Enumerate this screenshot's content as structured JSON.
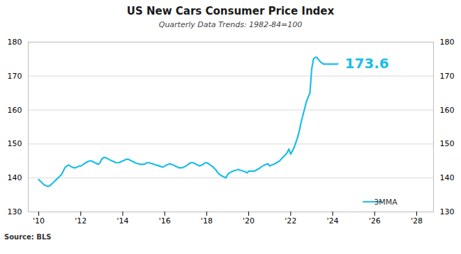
{
  "chart_data": {
    "type": "line",
    "title": "US New Cars Consumer Price Index",
    "subtitle": "Quarterly Data Trends: 1982-84=100",
    "source": "Source: BLS",
    "x": [
      2010.0,
      2010.083,
      2010.167,
      2010.25,
      2010.333,
      2010.417,
      2010.5,
      2010.583,
      2010.667,
      2010.75,
      2010.833,
      2010.917,
      2011.0,
      2011.083,
      2011.167,
      2011.25,
      2011.333,
      2011.417,
      2011.5,
      2011.583,
      2011.667,
      2011.75,
      2011.833,
      2011.917,
      2012.0,
      2012.083,
      2012.167,
      2012.25,
      2012.333,
      2012.417,
      2012.5,
      2012.583,
      2012.667,
      2012.75,
      2012.833,
      2012.917,
      2013.0,
      2013.083,
      2013.167,
      2013.25,
      2013.333,
      2013.417,
      2013.5,
      2013.583,
      2013.667,
      2013.75,
      2013.833,
      2013.917,
      2014.0,
      2014.083,
      2014.167,
      2014.25,
      2014.333,
      2014.417,
      2014.5,
      2014.583,
      2014.667,
      2014.75,
      2014.833,
      2014.917,
      2015.0,
      2015.083,
      2015.167,
      2015.25,
      2015.333,
      2015.417,
      2015.5,
      2015.583,
      2015.667,
      2015.75,
      2015.833,
      2015.917,
      2016.0,
      2016.083,
      2016.167,
      2016.25,
      2016.333,
      2016.417,
      2016.5,
      2016.583,
      2016.667,
      2016.75,
      2016.833,
      2016.917,
      2017.0,
      2017.083,
      2017.167,
      2017.25,
      2017.333,
      2017.417,
      2017.5,
      2017.583,
      2017.667,
      2017.75,
      2017.833,
      2017.917,
      2018.0,
      2018.083,
      2018.167,
      2018.25,
      2018.333,
      2018.417,
      2018.5,
      2018.583,
      2018.667,
      2018.75,
      2018.833,
      2018.917,
      2019.0,
      2019.083,
      2019.167,
      2019.25,
      2019.333,
      2019.417,
      2019.5,
      2019.583,
      2019.667,
      2019.75,
      2019.833,
      2019.917,
      2020.0,
      2020.083,
      2020.167,
      2020.25,
      2020.333,
      2020.417,
      2020.5,
      2020.583,
      2020.667,
      2020.75,
      2020.833,
      2020.917,
      2021.0,
      2021.083,
      2021.167,
      2021.25,
      2021.333,
      2021.417,
      2021.5,
      2021.583,
      2021.667,
      2021.75,
      2021.833,
      2021.917,
      2022.0,
      2022.083,
      2022.167,
      2022.25,
      2022.333,
      2022.417,
      2022.5,
      2022.583,
      2022.667,
      2022.75,
      2022.833,
      2022.917,
      2023.0,
      2023.083,
      2023.167,
      2023.25,
      2023.333,
      2023.417,
      2023.5,
      2023.583,
      2023.667,
      2023.75,
      2023.833,
      2023.917,
      2024.0,
      2024.083,
      2024.167,
      2024.25
    ],
    "series": [
      {
        "name": "3MMA",
        "color": "#1ABDE8",
        "values": [
          139.5,
          139.0,
          138.5,
          138.0,
          137.8,
          137.5,
          137.6,
          138.0,
          138.5,
          139.0,
          139.5,
          140.0,
          140.5,
          141.0,
          142.0,
          143.0,
          143.5,
          143.8,
          143.5,
          143.2,
          143.0,
          143.0,
          143.2,
          143.5,
          143.5,
          143.8,
          144.2,
          144.5,
          144.8,
          145.0,
          145.0,
          144.8,
          144.5,
          144.3,
          144.0,
          144.5,
          145.5,
          146.0,
          146.0,
          145.8,
          145.5,
          145.2,
          145.0,
          144.8,
          144.5,
          144.5,
          144.5,
          144.8,
          145.0,
          145.2,
          145.5,
          145.5,
          145.3,
          145.0,
          144.8,
          144.5,
          144.3,
          144.2,
          144.0,
          144.0,
          144.0,
          144.2,
          144.5,
          144.5,
          144.3,
          144.2,
          144.0,
          143.8,
          143.7,
          143.5,
          143.3,
          143.2,
          143.5,
          143.8,
          144.0,
          144.2,
          144.0,
          143.8,
          143.5,
          143.3,
          143.0,
          143.0,
          143.0,
          143.2,
          143.5,
          143.8,
          144.2,
          144.5,
          144.5,
          144.3,
          144.0,
          143.8,
          143.5,
          143.8,
          144.0,
          144.5,
          144.5,
          144.2,
          143.8,
          143.5,
          143.0,
          142.5,
          141.8,
          141.2,
          140.8,
          140.5,
          140.3,
          140.0,
          141.0,
          141.5,
          141.8,
          142.0,
          142.2,
          142.3,
          142.5,
          142.3,
          142.2,
          142.0,
          141.8,
          141.5,
          142.0,
          142.0,
          142.0,
          142.0,
          142.2,
          142.5,
          142.8,
          143.2,
          143.5,
          143.8,
          144.0,
          144.2,
          143.5,
          143.8,
          144.0,
          144.2,
          144.5,
          144.8,
          145.2,
          145.8,
          146.3,
          146.8,
          147.5,
          148.5,
          147.0,
          148.0,
          149.0,
          150.5,
          152.0,
          154.0,
          156.5,
          158.5,
          160.5,
          162.5,
          163.8,
          165.0,
          172.0,
          175.0,
          175.5,
          175.5,
          174.8,
          174.2,
          173.8,
          173.5,
          173.5,
          173.5,
          173.5,
          173.5,
          173.5,
          173.5,
          173.5,
          173.6
        ]
      }
    ],
    "annotations": [
      {
        "text": "173.6",
        "x": 2024.25,
        "y": 173.6,
        "color": "#1ABDE8"
      }
    ],
    "xlim": [
      2009.5,
      2028.8
    ],
    "xticks": [
      {
        "value": 2010,
        "label": "'10"
      },
      {
        "value": 2012,
        "label": "'12"
      },
      {
        "value": 2014,
        "label": "'14"
      },
      {
        "value": 2016,
        "label": "'16"
      },
      {
        "value": 2018,
        "label": "'18"
      },
      {
        "value": 2020,
        "label": "'20"
      },
      {
        "value": 2022,
        "label": "'22"
      },
      {
        "value": 2024,
        "label": "'24"
      },
      {
        "value": 2026,
        "label": "'26"
      },
      {
        "value": 2028,
        "label": "'28"
      }
    ],
    "ylim": [
      130,
      180
    ],
    "yticks": [
      130,
      140,
      150,
      160,
      170,
      180
    ],
    "y2lim": [
      130,
      180
    ],
    "y2ticks": [
      130,
      140,
      150,
      160,
      170,
      180
    ],
    "grid": true,
    "legend": "lower right"
  }
}
